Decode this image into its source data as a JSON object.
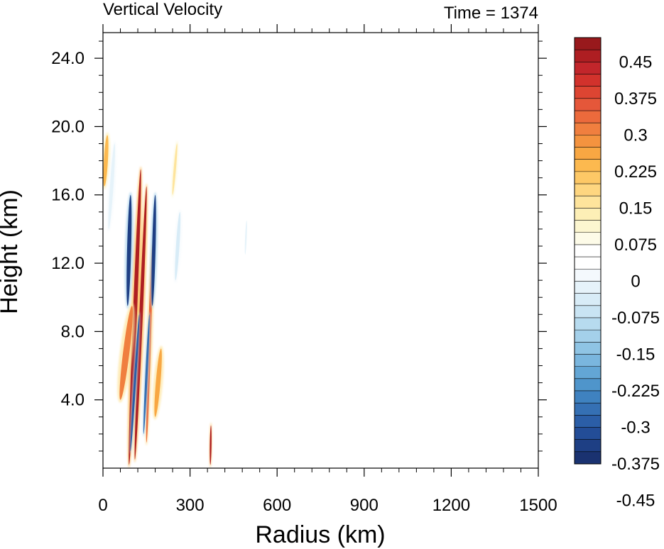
{
  "chart_data": {
    "type": "heatmap",
    "title": "Vertical Velocity",
    "time_label": "Time = 1374",
    "xlabel": "Radius (km)",
    "ylabel": "Height (km)",
    "xlim": [
      0,
      1500
    ],
    "ylim": [
      0,
      25.5
    ],
    "x_ticks": [
      {
        "value": 0,
        "label": "0"
      },
      {
        "value": 300,
        "label": "300"
      },
      {
        "value": 600,
        "label": "600"
      },
      {
        "value": 900,
        "label": "900"
      },
      {
        "value": 1200,
        "label": "1200"
      },
      {
        "value": 1500,
        "label": "1500"
      }
    ],
    "y_ticks": [
      {
        "value": 4,
        "label": "4.0"
      },
      {
        "value": 8,
        "label": "8.0"
      },
      {
        "value": 12,
        "label": "12.0"
      },
      {
        "value": 16,
        "label": "16.0"
      },
      {
        "value": 20,
        "label": "20.0"
      },
      {
        "value": 24,
        "label": "24.0"
      }
    ],
    "colorbar": {
      "colors": [
        "#98191c",
        "#ae1e22",
        "#c2262b",
        "#d2322c",
        "#dd4532",
        "#e5573a",
        "#ec6a3c",
        "#f07f3f",
        "#f4933f",
        "#f8a743",
        "#fcb94f",
        "#fdc866",
        "#fed680",
        "#fee49c",
        "#fdefb6",
        "#fcf6d0",
        "#fdfbe8",
        "#ffffff",
        "#ffffff",
        "#f4f9fd",
        "#e6f3fa",
        "#d8ecf7",
        "#c9e4f3",
        "#b7dbef",
        "#a4d0ea",
        "#8fc4e4",
        "#7ab6de",
        "#63a6d5",
        "#4f95cb",
        "#3f82c0",
        "#3570b4",
        "#2b5ea7",
        "#234d97",
        "#1e3f84",
        "#1a3270"
      ],
      "labels": [
        {
          "boundary": 2,
          "text": "0.45"
        },
        {
          "boundary": 5,
          "text": "0.375"
        },
        {
          "boundary": 8,
          "text": "0.3"
        },
        {
          "boundary": 11,
          "text": "0.225"
        },
        {
          "boundary": 14,
          "text": "0.15"
        },
        {
          "boundary": 17,
          "text": "0.075"
        },
        {
          "boundary": 20,
          "text": "0"
        },
        {
          "boundary": 23,
          "text": "-0.075"
        },
        {
          "boundary": 26,
          "text": "-0.15"
        },
        {
          "boundary": 29,
          "text": "-0.225"
        },
        {
          "boundary": 32,
          "text": "-0.3"
        },
        {
          "boundary": 35,
          "text": "-0.375"
        },
        {
          "boundary": 38,
          "text": "-0.45"
        }
      ]
    },
    "features": [
      {
        "kind": "updraft",
        "r0": 90,
        "z0": 0.2,
        "r1": 130,
        "z1": 17.5,
        "width": 14,
        "w": 0.55
      },
      {
        "kind": "updraft",
        "r0": 110,
        "z0": 0.5,
        "r1": 150,
        "z1": 16.5,
        "width": 12,
        "w": 0.55
      },
      {
        "kind": "updraft",
        "r0": 150,
        "z0": 1.5,
        "r1": 170,
        "z1": 13,
        "width": 10,
        "w": 0.4
      },
      {
        "kind": "updraft",
        "r0": 60,
        "z0": 4,
        "r1": 100,
        "z1": 9.5,
        "width": 22,
        "w": 0.35
      },
      {
        "kind": "updraft",
        "r0": 180,
        "z0": 3,
        "r1": 200,
        "z1": 7,
        "width": 16,
        "w": 0.3
      },
      {
        "kind": "updraft",
        "r0": 370,
        "z0": 0.2,
        "r1": 372,
        "z1": 2.5,
        "width": 4,
        "w": 0.55
      },
      {
        "kind": "updraft",
        "r0": 5,
        "z0": 16.5,
        "r1": 15,
        "z1": 19.5,
        "width": 14,
        "w": 0.25
      },
      {
        "kind": "updraft",
        "r0": 240,
        "z0": 16,
        "r1": 255,
        "z1": 19,
        "width": 8,
        "w": 0.15
      },
      {
        "kind": "downdraft",
        "r0": 85,
        "z0": 9.5,
        "r1": 95,
        "z1": 16,
        "width": 14,
        "w": -0.55
      },
      {
        "kind": "downdraft",
        "r0": 170,
        "z0": 9.5,
        "r1": 180,
        "z1": 16,
        "width": 12,
        "w": -0.55
      },
      {
        "kind": "downdraft",
        "r0": 95,
        "z0": 1.0,
        "r1": 125,
        "z1": 9,
        "width": 8,
        "w": -0.5
      },
      {
        "kind": "downdraft",
        "r0": 140,
        "z0": 2,
        "r1": 160,
        "z1": 9,
        "width": 8,
        "w": -0.45
      },
      {
        "kind": "downdraft",
        "r0": 250,
        "z0": 11,
        "r1": 265,
        "z1": 15,
        "width": 12,
        "w": -0.15
      },
      {
        "kind": "downdraft",
        "r0": 20,
        "z0": 14,
        "r1": 40,
        "z1": 19,
        "width": 12,
        "w": -0.12
      },
      {
        "kind": "downdraft",
        "r0": 490,
        "z0": 12.5,
        "r1": 495,
        "z1": 14.5,
        "width": 4,
        "w": -0.1
      }
    ]
  }
}
